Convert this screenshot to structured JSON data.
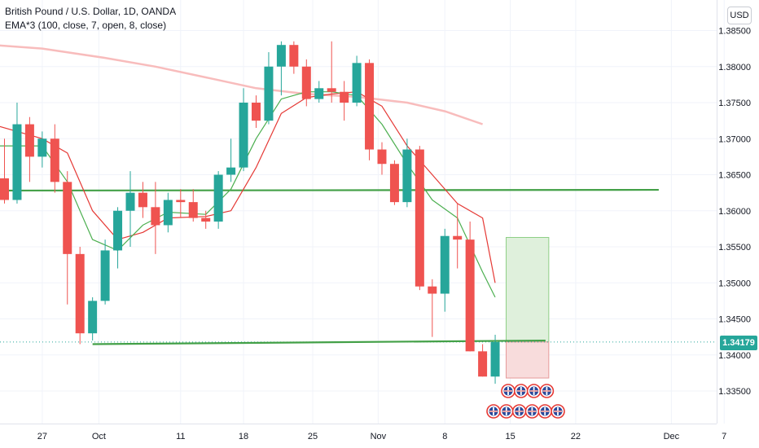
{
  "legend": {
    "symbol": "British Pound / U.S. Dollar, 1D, OANDA",
    "indicator": "EMA*3 (100, close, 7, open, 8, close)"
  },
  "currency": "USD",
  "last_price_label": "1.34179",
  "colors": {
    "up": "#26a69a",
    "down": "#ef5350",
    "ema_long": "#f8bcbc",
    "ema_fast": "#4caf50",
    "ema_slow": "#e53935",
    "trendline": "#43a047",
    "target_zone": "#dff0dc",
    "stop_zone": "#f8dcdc",
    "grid": "#f0f3fa",
    "axis_text": "#131722"
  },
  "chart_data": {
    "type": "candlestick",
    "y_axis": {
      "ylim": [
        1.33,
        1.3875
      ],
      "ticks": [
        "1.33500",
        "1.34000",
        "1.34500",
        "1.35000",
        "1.35500",
        "1.36000",
        "1.36500",
        "1.37000",
        "1.37500",
        "1.38000",
        "1.38500"
      ]
    },
    "x_axis": {
      "tick_labels": [
        "27",
        "Oct",
        "11",
        "18",
        "25",
        "Nov",
        "8",
        "15",
        "22",
        "Dec",
        "7"
      ]
    },
    "candles": [
      {
        "o": 1.3645,
        "h": 1.37,
        "l": 1.361,
        "c": 1.3615
      },
      {
        "o": 1.3615,
        "h": 1.375,
        "l": 1.361,
        "c": 1.372
      },
      {
        "o": 1.372,
        "h": 1.373,
        "l": 1.364,
        "c": 1.3675
      },
      {
        "o": 1.3675,
        "h": 1.371,
        "l": 1.366,
        "c": 1.37
      },
      {
        "o": 1.37,
        "h": 1.372,
        "l": 1.3625,
        "c": 1.364
      },
      {
        "o": 1.364,
        "h": 1.3655,
        "l": 1.347,
        "c": 1.354
      },
      {
        "o": 1.354,
        "h": 1.355,
        "l": 1.3415,
        "c": 1.343
      },
      {
        "o": 1.343,
        "h": 1.348,
        "l": 1.342,
        "c": 1.3475
      },
      {
        "o": 1.3475,
        "h": 1.356,
        "l": 1.347,
        "c": 1.3545
      },
      {
        "o": 1.3545,
        "h": 1.3605,
        "l": 1.352,
        "c": 1.36
      },
      {
        "o": 1.36,
        "h": 1.3655,
        "l": 1.355,
        "c": 1.3625
      },
      {
        "o": 1.3625,
        "h": 1.364,
        "l": 1.359,
        "c": 1.3605
      },
      {
        "o": 1.3605,
        "h": 1.364,
        "l": 1.354,
        "c": 1.358
      },
      {
        "o": 1.358,
        "h": 1.3625,
        "l": 1.357,
        "c": 1.3615
      },
      {
        "o": 1.3615,
        "h": 1.363,
        "l": 1.359,
        "c": 1.3612
      },
      {
        "o": 1.3612,
        "h": 1.363,
        "l": 1.3585,
        "c": 1.359
      },
      {
        "o": 1.359,
        "h": 1.36,
        "l": 1.3575,
        "c": 1.3585
      },
      {
        "o": 1.3585,
        "h": 1.3655,
        "l": 1.3575,
        "c": 1.365
      },
      {
        "o": 1.365,
        "h": 1.37,
        "l": 1.364,
        "c": 1.366
      },
      {
        "o": 1.366,
        "h": 1.377,
        "l": 1.3655,
        "c": 1.375
      },
      {
        "o": 1.375,
        "h": 1.376,
        "l": 1.3715,
        "c": 1.3725
      },
      {
        "o": 1.3725,
        "h": 1.382,
        "l": 1.372,
        "c": 1.38
      },
      {
        "o": 1.38,
        "h": 1.3835,
        "l": 1.376,
        "c": 1.383
      },
      {
        "o": 1.383,
        "h": 1.3835,
        "l": 1.379,
        "c": 1.38
      },
      {
        "o": 1.38,
        "h": 1.381,
        "l": 1.3745,
        "c": 1.3755
      },
      {
        "o": 1.3755,
        "h": 1.378,
        "l": 1.375,
        "c": 1.377
      },
      {
        "o": 1.377,
        "h": 1.3835,
        "l": 1.375,
        "c": 1.3765
      },
      {
        "o": 1.3765,
        "h": 1.378,
        "l": 1.3725,
        "c": 1.375
      },
      {
        "o": 1.375,
        "h": 1.3815,
        "l": 1.3745,
        "c": 1.3805
      },
      {
        "o": 1.3805,
        "h": 1.381,
        "l": 1.367,
        "c": 1.3685
      },
      {
        "o": 1.3685,
        "h": 1.3695,
        "l": 1.365,
        "c": 1.3665
      },
      {
        "o": 1.3665,
        "h": 1.367,
        "l": 1.3608,
        "c": 1.3612
      },
      {
        "o": 1.3612,
        "h": 1.37,
        "l": 1.3605,
        "c": 1.3685
      },
      {
        "o": 1.3685,
        "h": 1.369,
        "l": 1.349,
        "c": 1.3495
      },
      {
        "o": 1.3495,
        "h": 1.3505,
        "l": 1.3425,
        "c": 1.3485
      },
      {
        "o": 1.3485,
        "h": 1.3575,
        "l": 1.346,
        "c": 1.3565
      },
      {
        "o": 1.3565,
        "h": 1.361,
        "l": 1.352,
        "c": 1.356
      },
      {
        "o": 1.356,
        "h": 1.3585,
        "l": 1.3405,
        "c": 1.3405
      },
      {
        "o": 1.3405,
        "h": 1.3415,
        "l": 1.337,
        "c": 1.337
      },
      {
        "o": 1.337,
        "h": 1.3428,
        "l": 1.336,
        "c": 1.3418
      }
    ],
    "ema_long": [
      {
        "i": -1,
        "v": 1.383
      },
      {
        "i": 3,
        "v": 1.3825
      },
      {
        "i": 8,
        "v": 1.3812
      },
      {
        "i": 12,
        "v": 1.38
      },
      {
        "i": 16,
        "v": 1.3785
      },
      {
        "i": 20,
        "v": 1.377
      },
      {
        "i": 24,
        "v": 1.3762
      },
      {
        "i": 28,
        "v": 1.3758
      },
      {
        "i": 32,
        "v": 1.375
      },
      {
        "i": 35,
        "v": 1.3738
      },
      {
        "i": 38,
        "v": 1.372
      }
    ],
    "ema_fast": [
      {
        "i": -1,
        "v": 1.369
      },
      {
        "i": 1,
        "v": 1.369
      },
      {
        "i": 3,
        "v": 1.369
      },
      {
        "i": 5,
        "v": 1.364
      },
      {
        "i": 7,
        "v": 1.356
      },
      {
        "i": 9,
        "v": 1.3545
      },
      {
        "i": 11,
        "v": 1.358
      },
      {
        "i": 13,
        "v": 1.3598
      },
      {
        "i": 16,
        "v": 1.3595
      },
      {
        "i": 18,
        "v": 1.363
      },
      {
        "i": 20,
        "v": 1.37
      },
      {
        "i": 22,
        "v": 1.3755
      },
      {
        "i": 24,
        "v": 1.3765
      },
      {
        "i": 26,
        "v": 1.3765
      },
      {
        "i": 28,
        "v": 1.376
      },
      {
        "i": 30,
        "v": 1.372
      },
      {
        "i": 32,
        "v": 1.3665
      },
      {
        "i": 34,
        "v": 1.3615
      },
      {
        "i": 36,
        "v": 1.359
      },
      {
        "i": 38,
        "v": 1.3515
      },
      {
        "i": 39,
        "v": 1.348
      }
    ],
    "ema_slow": [
      {
        "i": -1,
        "v": 1.372
      },
      {
        "i": 3,
        "v": 1.37
      },
      {
        "i": 5,
        "v": 1.368
      },
      {
        "i": 7,
        "v": 1.36
      },
      {
        "i": 9,
        "v": 1.356
      },
      {
        "i": 11,
        "v": 1.357
      },
      {
        "i": 13,
        "v": 1.359
      },
      {
        "i": 16,
        "v": 1.3592
      },
      {
        "i": 18,
        "v": 1.36
      },
      {
        "i": 20,
        "v": 1.366
      },
      {
        "i": 22,
        "v": 1.3735
      },
      {
        "i": 24,
        "v": 1.3757
      },
      {
        "i": 26,
        "v": 1.3762
      },
      {
        "i": 28,
        "v": 1.3765
      },
      {
        "i": 30,
        "v": 1.3745
      },
      {
        "i": 32,
        "v": 1.369
      },
      {
        "i": 34,
        "v": 1.365
      },
      {
        "i": 36,
        "v": 1.361
      },
      {
        "i": 38,
        "v": 1.359
      },
      {
        "i": 39,
        "v": 1.35
      }
    ],
    "trendlines": [
      {
        "from": {
          "i": -1,
          "v": 1.3628
        },
        "to": {
          "i": 52,
          "v": 1.3629
        }
      },
      {
        "from": {
          "i": 7,
          "v": 1.3415
        },
        "to": {
          "i": 43,
          "v": 1.342
        }
      }
    ],
    "position": {
      "from_i": 40,
      "to_i": 43,
      "entry": 1.3418,
      "target": 1.3563,
      "stop": 1.3368
    },
    "events": {
      "row1_count": 4,
      "row2_count": 6
    }
  }
}
